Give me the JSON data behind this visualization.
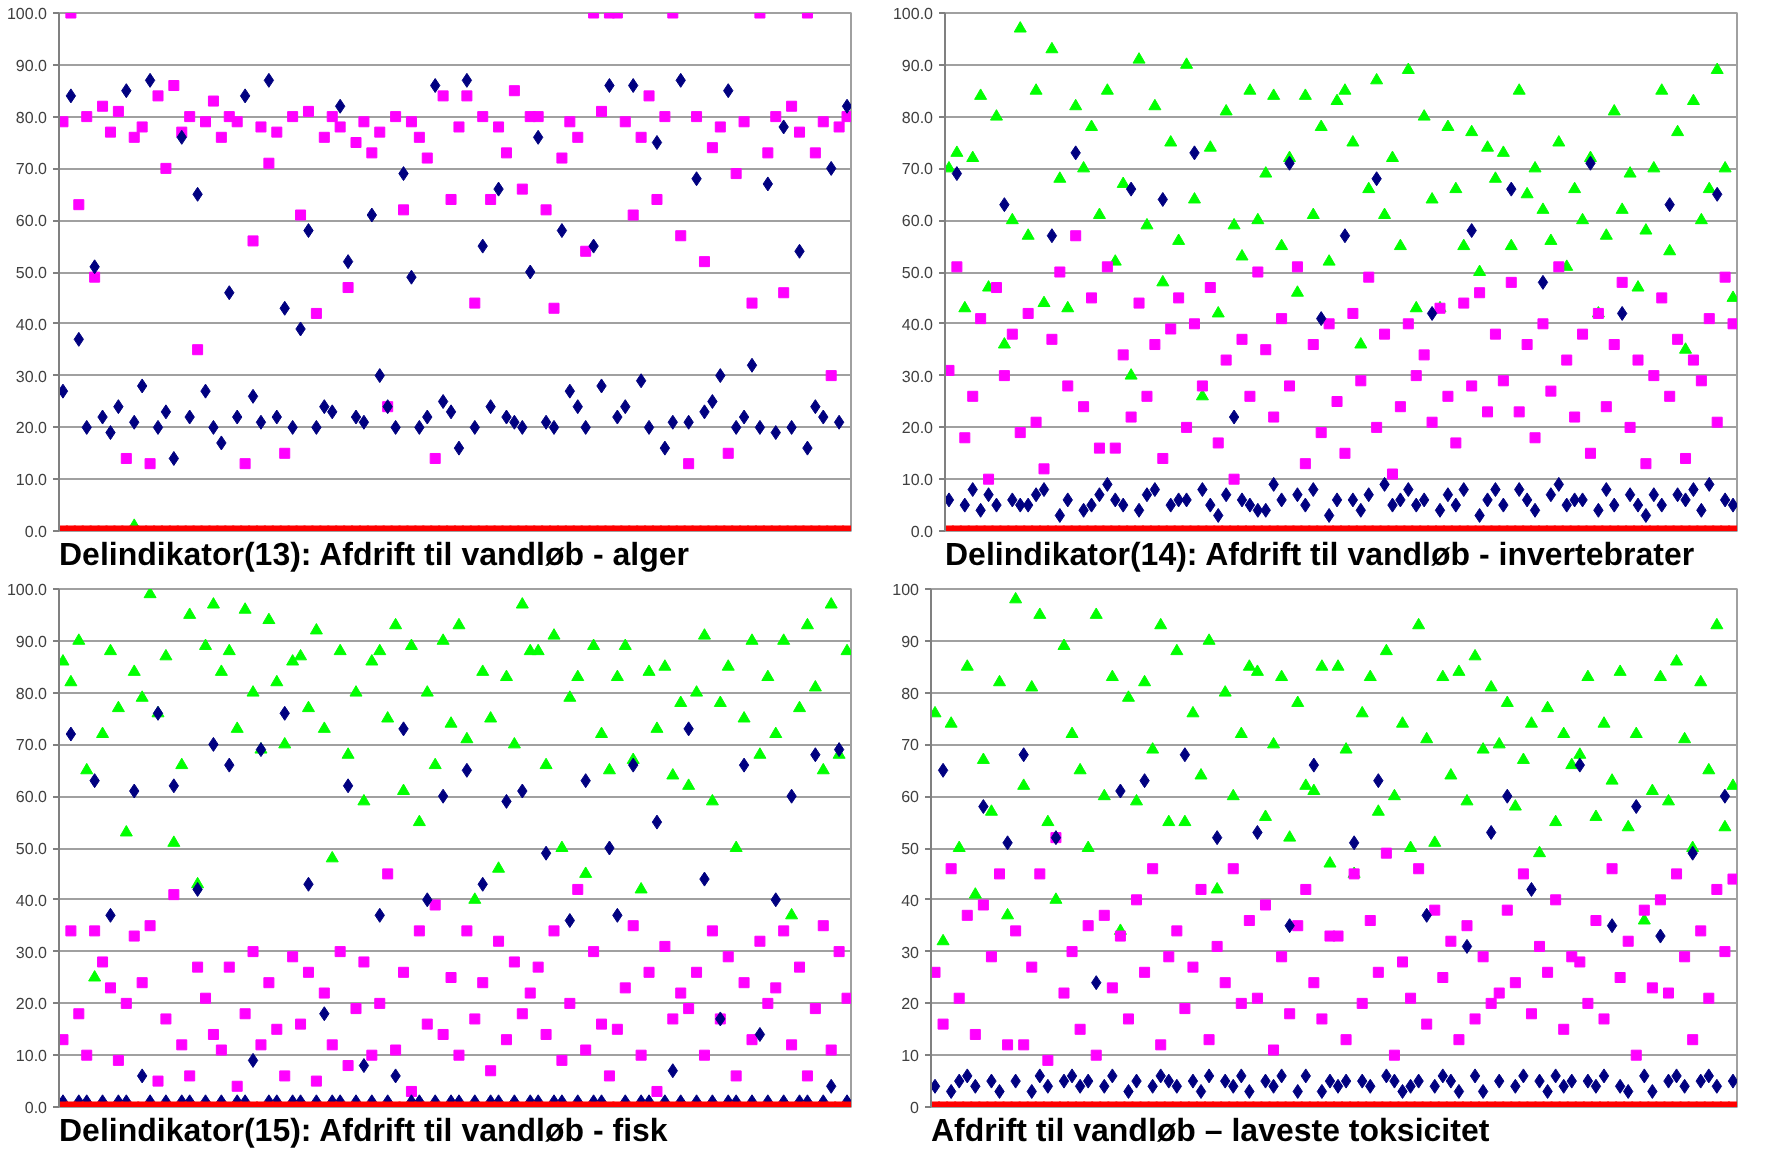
{
  "chart_data": [
    {
      "type": "scatter",
      "title": "Delindikator(13): Afdrift til vandløb - alger",
      "categories": [
        null,
        null,
        null,
        null,
        null,
        null,
        null,
        null,
        null,
        null,
        null,
        null,
        null,
        null,
        null,
        null,
        null,
        null,
        null,
        null,
        null,
        null,
        null,
        null,
        null,
        null,
        null,
        null,
        null,
        null,
        null,
        null,
        null,
        null,
        null,
        null,
        null,
        null,
        null,
        null,
        null,
        null,
        null,
        null,
        null,
        null,
        null,
        null,
        null,
        null,
        null,
        null,
        null,
        null,
        null,
        null,
        null,
        null,
        null,
        null,
        null,
        null,
        null,
        null,
        null,
        null,
        null,
        null,
        null,
        null,
        null,
        null,
        null,
        null,
        null,
        null,
        null,
        null,
        null,
        null,
        null,
        null,
        null,
        null,
        null,
        null,
        null,
        null,
        null,
        null,
        null,
        null,
        null,
        null,
        null,
        null,
        null,
        null,
        null,
        null
      ],
      "series": [
        {
          "color": "#00ff00",
          "marker": "triangle",
          "values": [
            null,
            null,
            null,
            null,
            null,
            null,
            null,
            null,
            null,
            1,
            null,
            null,
            null,
            null,
            null,
            null,
            null,
            null,
            null,
            null,
            null,
            null,
            null,
            null,
            null,
            null,
            null,
            null,
            null,
            null,
            null,
            null,
            null,
            null,
            null,
            null,
            null,
            null,
            null,
            null,
            null,
            null,
            null,
            null,
            null,
            null,
            null,
            null,
            null,
            null,
            null,
            null,
            null,
            null,
            null,
            null,
            null,
            null,
            null,
            null,
            null,
            null,
            null,
            null,
            null,
            null,
            null,
            null,
            null,
            null,
            null,
            null,
            null,
            null,
            null,
            null,
            null,
            null,
            null,
            null,
            null,
            null,
            null,
            null,
            null,
            null,
            null,
            null,
            null,
            null,
            null,
            null,
            null,
            null,
            null,
            null,
            null,
            null,
            null,
            null
          ]
        },
        {
          "color": "#ff00ff",
          "marker": "square",
          "values": [
            79,
            100,
            63,
            80,
            49,
            82,
            77,
            81,
            14,
            76,
            78,
            13,
            84,
            70,
            86,
            77,
            80,
            35,
            79,
            83,
            76,
            80,
            79,
            13,
            56,
            78,
            71,
            77,
            15,
            80,
            61,
            81,
            42,
            76,
            80,
            78,
            47,
            75,
            79,
            73,
            77,
            24,
            80,
            62,
            79,
            76,
            72,
            14,
            84,
            64,
            78,
            84,
            44,
            80,
            64,
            78,
            73,
            85,
            66,
            80,
            80,
            62,
            43,
            72,
            79,
            76,
            54,
            100,
            81,
            100,
            100,
            79,
            61,
            76,
            84,
            64,
            80,
            100,
            57,
            13,
            80,
            52,
            74,
            78,
            15,
            69,
            79,
            44,
            100,
            73,
            80,
            46,
            82,
            77,
            100,
            73,
            79,
            30,
            78,
            80
          ]
        },
        {
          "color": "#000080",
          "marker": "diamond",
          "values": [
            27,
            84,
            37,
            20,
            51,
            22,
            19,
            24,
            85,
            21,
            28,
            87,
            20,
            23,
            14,
            76,
            22,
            65,
            27,
            20,
            17,
            46,
            22,
            84,
            26,
            21,
            87,
            22,
            43,
            20,
            39,
            58,
            20,
            24,
            23,
            82,
            52,
            22,
            21,
            61,
            30,
            24,
            20,
            69,
            49,
            20,
            22,
            86,
            25,
            23,
            16,
            87,
            20,
            55,
            24,
            66,
            22,
            21,
            20,
            50,
            76,
            21,
            20,
            58,
            27,
            24,
            20,
            55,
            28,
            86,
            22,
            24,
            86,
            29,
            20,
            75,
            16,
            21,
            87,
            21,
            68,
            23,
            25,
            30,
            85,
            20,
            22,
            32,
            20,
            67,
            19,
            78,
            20,
            54,
            16,
            24,
            22,
            70,
            21,
            82
          ]
        },
        {
          "color": "#ff0000",
          "marker": "square",
          "values": [
            0,
            0,
            0,
            0,
            0,
            0,
            0,
            0,
            0,
            0,
            0,
            0,
            0,
            0,
            0,
            0,
            0,
            0,
            0,
            0,
            0,
            0,
            0,
            0,
            0,
            0,
            0,
            0,
            0,
            0,
            0,
            0,
            0,
            0,
            0,
            0,
            0,
            0,
            0,
            0,
            0,
            0,
            0,
            0,
            0,
            0,
            0,
            0,
            0,
            0,
            0,
            0,
            0,
            0,
            0,
            0,
            0,
            0,
            0,
            0,
            0,
            0,
            0,
            0,
            0,
            0,
            0,
            0,
            0,
            0,
            0,
            0,
            0,
            0,
            0,
            0,
            0,
            0,
            0,
            0,
            0,
            0,
            0,
            0,
            0,
            0,
            0,
            0,
            0,
            0,
            0,
            0,
            0,
            0,
            0,
            0,
            0,
            0,
            0,
            0
          ]
        }
      ],
      "ylim": [
        0,
        100
      ],
      "yticks": [
        {
          "value": 0,
          "label": "0.0"
        },
        {
          "value": 10,
          "label": "10.0"
        },
        {
          "value": 20,
          "label": "20.0"
        },
        {
          "value": 30,
          "label": "30.0"
        },
        {
          "value": 40,
          "label": "40.0"
        },
        {
          "value": 50,
          "label": "50.0"
        },
        {
          "value": 60,
          "label": "60.0"
        },
        {
          "value": 70,
          "label": "70.0"
        },
        {
          "value": 80,
          "label": "80.0"
        },
        {
          "value": 90,
          "label": "90.0"
        },
        {
          "value": 100,
          "label": "100.0"
        }
      ],
      "grid": "y",
      "tick_labels": "y"
    },
    {
      "type": "scatter",
      "title": "Delindikator(14): Afdrift til vandløb - invertebrater",
      "categories": [
        null,
        null,
        null,
        null,
        null,
        null,
        null,
        null,
        null,
        null,
        null,
        null,
        null,
        null,
        null,
        null,
        null,
        null,
        null,
        null,
        null,
        null,
        null,
        null,
        null,
        null,
        null,
        null,
        null,
        null,
        null,
        null,
        null,
        null,
        null,
        null,
        null,
        null,
        null,
        null,
        null,
        null,
        null,
        null,
        null,
        null,
        null,
        null,
        null,
        null,
        null,
        null,
        null,
        null,
        null,
        null,
        null,
        null,
        null,
        null,
        null,
        null,
        null,
        null,
        null,
        null,
        null,
        null,
        null,
        null,
        null,
        null,
        null,
        null,
        null,
        null,
        null,
        null,
        null,
        null,
        null,
        null,
        null,
        null,
        null,
        null,
        null,
        null,
        null,
        null,
        null,
        null,
        null,
        null,
        null,
        null,
        null,
        null,
        null,
        null
      ],
      "series": [
        {
          "color": "#00ff00",
          "marker": "triangle",
          "values": [
            70,
            73,
            43,
            72,
            84,
            47,
            80,
            36,
            60,
            97,
            57,
            85,
            44,
            93,
            68,
            43,
            82,
            70,
            78,
            61,
            85,
            52,
            67,
            30,
            91,
            59,
            82,
            48,
            75,
            56,
            90,
            64,
            26,
            74,
            42,
            81,
            59,
            53,
            85,
            60,
            69,
            84,
            55,
            72,
            46,
            84,
            61,
            78,
            52,
            83,
            85,
            75,
            36,
            66,
            87,
            61,
            72,
            55,
            89,
            43,
            80,
            64,
            43,
            78,
            66,
            55,
            77,
            50,
            74,
            68,
            73,
            55,
            85,
            65,
            70,
            62,
            56,
            75,
            51,
            66,
            60,
            72,
            42,
            57,
            81,
            62,
            69,
            47,
            58,
            70,
            85,
            54,
            77,
            35,
            83,
            60,
            66,
            89,
            70,
            45
          ]
        },
        {
          "color": "#ff00ff",
          "marker": "square",
          "values": [
            31,
            51,
            18,
            26,
            41,
            10,
            47,
            30,
            38,
            19,
            42,
            21,
            12,
            37,
            50,
            28,
            57,
            24,
            45,
            16,
            51,
            16,
            34,
            22,
            44,
            26,
            36,
            14,
            39,
            45,
            20,
            40,
            28,
            47,
            17,
            33,
            10,
            37,
            26,
            50,
            35,
            22,
            41,
            28,
            51,
            13,
            36,
            19,
            40,
            25,
            15,
            42,
            29,
            49,
            20,
            38,
            11,
            24,
            40,
            30,
            34,
            21,
            43,
            26,
            17,
            44,
            28,
            46,
            23,
            38,
            29,
            48,
            23,
            36,
            18,
            40,
            27,
            51,
            33,
            22,
            38,
            15,
            42,
            24,
            36,
            48,
            20,
            33,
            13,
            30,
            45,
            26,
            37,
            14,
            33,
            29,
            41,
            21,
            49,
            40
          ]
        },
        {
          "color": "#000080",
          "marker": "diamond",
          "values": [
            6,
            69,
            5,
            8,
            4,
            7,
            5,
            63,
            6,
            5,
            5,
            7,
            8,
            57,
            3,
            6,
            73,
            4,
            5,
            7,
            9,
            6,
            5,
            66,
            4,
            7,
            8,
            64,
            5,
            6,
            6,
            73,
            8,
            5,
            3,
            7,
            22,
            6,
            5,
            4,
            4,
            9,
            6,
            71,
            7,
            5,
            8,
            41,
            3,
            6,
            57,
            6,
            4,
            7,
            68,
            9,
            5,
            6,
            8,
            5,
            6,
            42,
            4,
            7,
            5,
            8,
            58,
            3,
            6,
            8,
            5,
            66,
            8,
            6,
            4,
            48,
            7,
            9,
            5,
            6,
            6,
            71,
            4,
            8,
            5,
            42,
            7,
            5,
            3,
            7,
            5,
            63,
            7,
            6,
            8,
            4,
            9,
            65,
            6,
            5
          ]
        },
        {
          "color": "#ff0000",
          "marker": "square",
          "values": [
            0,
            0,
            0,
            0,
            0,
            0,
            0,
            0,
            0,
            0,
            0,
            0,
            0,
            0,
            0,
            0,
            0,
            0,
            0,
            0,
            0,
            0,
            0,
            0,
            0,
            0,
            0,
            0,
            0,
            0,
            0,
            0,
            0,
            0,
            0,
            0,
            0,
            0,
            0,
            0,
            0,
            0,
            0,
            0,
            0,
            0,
            0,
            0,
            0,
            0,
            0,
            0,
            0,
            0,
            0,
            0,
            0,
            0,
            0,
            0,
            0,
            0,
            0,
            0,
            0,
            0,
            0,
            0,
            0,
            0,
            0,
            0,
            0,
            0,
            0,
            0,
            0,
            0,
            0,
            0,
            0,
            0,
            0,
            0,
            0,
            0,
            0,
            0,
            0,
            0,
            0,
            0,
            0,
            0,
            0,
            0,
            0,
            0,
            0,
            0
          ]
        }
      ],
      "ylim": [
        0,
        100
      ],
      "yticks": [
        {
          "value": 0,
          "label": "0.0"
        },
        {
          "value": 10,
          "label": "10.0"
        },
        {
          "value": 20,
          "label": "20.0"
        },
        {
          "value": 30,
          "label": "30.0"
        },
        {
          "value": 40,
          "label": "40.0"
        },
        {
          "value": 50,
          "label": "50.0"
        },
        {
          "value": 60,
          "label": "60.0"
        },
        {
          "value": 70,
          "label": "70.0"
        },
        {
          "value": 80,
          "label": "80.0"
        },
        {
          "value": 90,
          "label": "90.0"
        },
        {
          "value": 100,
          "label": "100.0"
        }
      ],
      "grid": "y",
      "tick_labels": "y"
    },
    {
      "type": "scatter",
      "title": "Delindikator(15): Afdrift til vandløb - fisk",
      "categories": [
        null,
        null,
        null,
        null,
        null,
        null,
        null,
        null,
        null,
        null,
        null,
        null,
        null,
        null,
        null,
        null,
        null,
        null,
        null,
        null,
        null,
        null,
        null,
        null,
        null,
        null,
        null,
        null,
        null,
        null,
        null,
        null,
        null,
        null,
        null,
        null,
        null,
        null,
        null,
        null,
        null,
        null,
        null,
        null,
        null,
        null,
        null,
        null,
        null,
        null,
        null,
        null,
        null,
        null,
        null,
        null,
        null,
        null,
        null,
        null,
        null,
        null,
        null,
        null,
        null,
        null,
        null,
        null,
        null,
        null,
        null,
        null,
        null,
        null,
        null,
        null,
        null,
        null,
        null,
        null,
        null,
        null,
        null,
        null,
        null,
        null,
        null,
        null,
        null,
        null,
        null,
        null,
        null,
        null,
        null,
        null,
        null,
        null,
        null,
        null
      ],
      "series": [
        {
          "color": "#00ff00",
          "marker": "triangle",
          "values": [
            86,
            82,
            90,
            65,
            25,
            72,
            88,
            77,
            53,
            84,
            79,
            99,
            76,
            87,
            51,
            66,
            95,
            43,
            89,
            97,
            84,
            88,
            73,
            96,
            80,
            69,
            94,
            82,
            70,
            86,
            87,
            77,
            92,
            73,
            48,
            88,
            68,
            80,
            59,
            86,
            88,
            75,
            93,
            61,
            89,
            55,
            80,
            66,
            90,
            74,
            93,
            71,
            40,
            84,
            75,
            46,
            83,
            70,
            97,
            88,
            88,
            66,
            91,
            50,
            79,
            83,
            45,
            89,
            72,
            65,
            83,
            89,
            67,
            42,
            84,
            73,
            85,
            64,
            78,
            62,
            80,
            91,
            59,
            78,
            85,
            50,
            75,
            90,
            68,
            83,
            72,
            90,
            37,
            77,
            93,
            81,
            65,
            97,
            68,
            88
          ]
        },
        {
          "color": "#ff00ff",
          "marker": "square",
          "values": [
            13,
            34,
            18,
            10,
            34,
            28,
            23,
            9,
            20,
            33,
            24,
            35,
            5,
            17,
            41,
            12,
            6,
            27,
            21,
            14,
            11,
            27,
            4,
            18,
            30,
            12,
            24,
            15,
            6,
            29,
            16,
            26,
            5,
            22,
            12,
            30,
            8,
            19,
            28,
            10,
            20,
            45,
            11,
            26,
            3,
            34,
            16,
            39,
            14,
            25,
            10,
            34,
            17,
            24,
            7,
            32,
            13,
            28,
            18,
            22,
            27,
            14,
            34,
            9,
            20,
            42,
            11,
            30,
            16,
            6,
            15,
            23,
            35,
            10,
            26,
            3,
            31,
            17,
            22,
            19,
            26,
            10,
            34,
            17,
            29,
            6,
            24,
            13,
            32,
            20,
            23,
            34,
            12,
            27,
            6,
            19,
            35,
            11,
            30,
            21
          ]
        },
        {
          "color": "#000080",
          "marker": "diamond",
          "values": [
            1,
            72,
            1,
            1,
            63,
            1,
            37,
            1,
            1,
            61,
            6,
            1,
            76,
            1,
            62,
            1,
            1,
            42,
            1,
            70,
            1,
            66,
            1,
            1,
            9,
            69,
            1,
            1,
            76,
            1,
            1,
            43,
            1,
            18,
            1,
            1,
            62,
            1,
            8,
            1,
            37,
            1,
            6,
            73,
            1,
            1,
            40,
            1,
            60,
            1,
            1,
            65,
            1,
            43,
            1,
            1,
            59,
            1,
            61,
            1,
            1,
            49,
            1,
            1,
            36,
            1,
            63,
            1,
            1,
            50,
            37,
            1,
            66,
            1,
            1,
            55,
            1,
            7,
            1,
            73,
            1,
            44,
            1,
            17,
            1,
            1,
            66,
            1,
            14,
            1,
            40,
            1,
            60,
            1,
            1,
            68,
            1,
            4,
            69,
            1
          ]
        },
        {
          "color": "#ff0000",
          "marker": "square",
          "values": [
            0,
            0,
            0,
            0,
            0,
            0,
            0,
            0,
            0,
            0,
            0,
            0,
            0,
            0,
            0,
            0,
            0,
            0,
            0,
            0,
            0,
            0,
            0,
            0,
            0,
            0,
            0,
            0,
            0,
            0,
            0,
            0,
            0,
            0,
            0,
            0,
            0,
            0,
            0,
            0,
            0,
            0,
            0,
            0,
            0,
            0,
            0,
            0,
            0,
            0,
            0,
            0,
            0,
            0,
            0,
            0,
            0,
            0,
            0,
            0,
            0,
            0,
            0,
            0,
            0,
            0,
            0,
            0,
            0,
            0,
            0,
            0,
            0,
            0,
            0,
            0,
            0,
            0,
            0,
            0,
            0,
            0,
            0,
            0,
            0,
            0,
            0,
            0,
            0,
            0,
            0,
            0,
            0,
            0,
            0,
            0,
            0,
            0,
            0,
            0
          ]
        }
      ],
      "ylim": [
        0,
        100
      ],
      "yticks": [
        {
          "value": 0,
          "label": "0.0"
        },
        {
          "value": 10,
          "label": "10.0"
        },
        {
          "value": 20,
          "label": "20.0"
        },
        {
          "value": 30,
          "label": "30.0"
        },
        {
          "value": 40,
          "label": "40.0"
        },
        {
          "value": 50,
          "label": "50.0"
        },
        {
          "value": 60,
          "label": "60.0"
        },
        {
          "value": 70,
          "label": "70.0"
        },
        {
          "value": 80,
          "label": "80.0"
        },
        {
          "value": 90,
          "label": "90.0"
        },
        {
          "value": 100,
          "label": "100.0"
        }
      ],
      "grid": "y",
      "tick_labels": "y"
    },
    {
      "type": "scatter",
      "title": "Afdrift til vandløb – laveste toksicitet",
      "categories": [
        null,
        null,
        null,
        null,
        null,
        null,
        null,
        null,
        null,
        null,
        null,
        null,
        null,
        null,
        null,
        null,
        null,
        null,
        null,
        null,
        null,
        null,
        null,
        null,
        null,
        null,
        null,
        null,
        null,
        null,
        null,
        null,
        null,
        null,
        null,
        null,
        null,
        null,
        null,
        null,
        null,
        null,
        null,
        null,
        null,
        null,
        null,
        null,
        null,
        null,
        null,
        null,
        null,
        null,
        null,
        null,
        null,
        null,
        null,
        null,
        null,
        null,
        null,
        null,
        null,
        null,
        null,
        null,
        null,
        null,
        null,
        null,
        null,
        null,
        null,
        null,
        null,
        null,
        null,
        null,
        null,
        null,
        null,
        null,
        null,
        null,
        null,
        null,
        null,
        null,
        null,
        null,
        null,
        null,
        null,
        null,
        null,
        null,
        null,
        null
      ],
      "series": [
        {
          "color": "#00ff00",
          "marker": "triangle",
          "values": [
            76,
            32,
            74,
            50,
            85,
            41,
            67,
            57,
            82,
            37,
            98,
            62,
            81,
            95,
            55,
            40,
            89,
            72,
            65,
            50,
            95,
            60,
            83,
            34,
            79,
            59,
            82,
            69,
            93,
            55,
            88,
            55,
            76,
            64,
            90,
            42,
            80,
            60,
            72,
            85,
            84,
            56,
            70,
            83,
            52,
            78,
            62,
            61,
            85,
            47,
            85,
            69,
            45,
            76,
            83,
            57,
            88,
            60,
            74,
            50,
            93,
            71,
            51,
            83,
            64,
            84,
            59,
            87,
            69,
            81,
            70,
            78,
            58,
            67,
            74,
            49,
            77,
            55,
            72,
            66,
            68,
            83,
            56,
            74,
            63,
            84,
            54,
            72,
            36,
            61,
            83,
            59,
            86,
            71,
            50,
            82,
            65,
            93,
            54,
            62
          ]
        },
        {
          "color": "#ff00ff",
          "marker": "square",
          "values": [
            26,
            16,
            46,
            21,
            37,
            14,
            39,
            29,
            45,
            12,
            34,
            12,
            27,
            45,
            9,
            52,
            22,
            30,
            15,
            35,
            10,
            37,
            23,
            33,
            17,
            40,
            26,
            46,
            12,
            29,
            34,
            19,
            27,
            42,
            13,
            31,
            24,
            46,
            20,
            36,
            21,
            39,
            11,
            29,
            18,
            35,
            42,
            24,
            17,
            33,
            33,
            13,
            45,
            20,
            36,
            26,
            49,
            10,
            28,
            21,
            46,
            16,
            38,
            25,
            32,
            13,
            35,
            17,
            29,
            20,
            22,
            38,
            24,
            45,
            18,
            31,
            26,
            40,
            15,
            29,
            28,
            20,
            36,
            17,
            46,
            25,
            32,
            10,
            38,
            23,
            40,
            22,
            45,
            29,
            13,
            34,
            21,
            42,
            30,
            44
          ]
        },
        {
          "color": "#000080",
          "marker": "diamond",
          "values": [
            4,
            65,
            3,
            5,
            6,
            4,
            58,
            5,
            3,
            51,
            5,
            68,
            3,
            6,
            4,
            52,
            5,
            6,
            4,
            5,
            24,
            4,
            6,
            61,
            3,
            5,
            63,
            4,
            6,
            5,
            4,
            68,
            5,
            3,
            6,
            52,
            5,
            4,
            6,
            3,
            53,
            5,
            4,
            6,
            35,
            3,
            6,
            66,
            3,
            5,
            4,
            5,
            51,
            5,
            4,
            63,
            6,
            5,
            3,
            4,
            5,
            37,
            4,
            6,
            5,
            3,
            31,
            6,
            3,
            53,
            5,
            60,
            4,
            6,
            42,
            5,
            3,
            6,
            4,
            5,
            66,
            5,
            4,
            6,
            35,
            4,
            3,
            58,
            6,
            3,
            33,
            5,
            6,
            4,
            49,
            5,
            6,
            4,
            60,
            5
          ]
        },
        {
          "color": "#ff0000",
          "marker": "square",
          "values": [
            0,
            0,
            0,
            0,
            0,
            0,
            0,
            0,
            0,
            0,
            0,
            0,
            0,
            0,
            0,
            0,
            0,
            0,
            0,
            0,
            0,
            0,
            0,
            0,
            0,
            0,
            0,
            0,
            0,
            0,
            0,
            0,
            0,
            0,
            0,
            0,
            0,
            0,
            0,
            0,
            0,
            0,
            0,
            0,
            0,
            0,
            0,
            0,
            0,
            0,
            0,
            0,
            0,
            0,
            0,
            0,
            0,
            0,
            0,
            0,
            0,
            0,
            0,
            0,
            0,
            0,
            0,
            0,
            0,
            0,
            0,
            0,
            0,
            0,
            0,
            0,
            0,
            0,
            0,
            0,
            0,
            0,
            0,
            0,
            0,
            0,
            0,
            0,
            0,
            0,
            0,
            0,
            0,
            0,
            0,
            0,
            0,
            0,
            0,
            0
          ]
        }
      ],
      "ylim": [
        0,
        100
      ],
      "yticks": [
        0,
        10,
        20,
        30,
        40,
        50,
        60,
        70,
        80,
        90,
        100
      ],
      "grid": "y",
      "tick_labels": "y"
    }
  ]
}
